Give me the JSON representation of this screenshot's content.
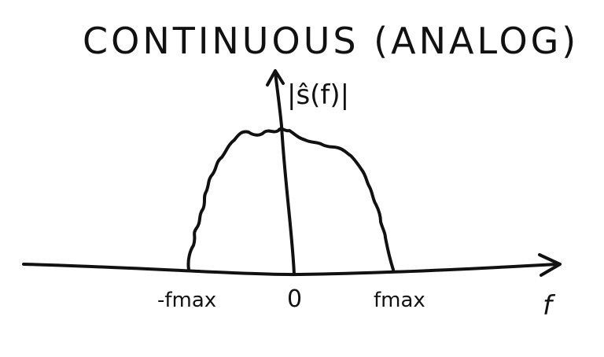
{
  "title": "CONTINUOUS (ANALOG)",
  "y_axis_label": "|ŝ(f)|",
  "x_axis_label": "f",
  "x_ticks": {
    "neg": "-fmax",
    "zero": "0",
    "pos": "fmax"
  },
  "colors": {
    "ink": "#111111",
    "background": "#ffffff"
  }
}
